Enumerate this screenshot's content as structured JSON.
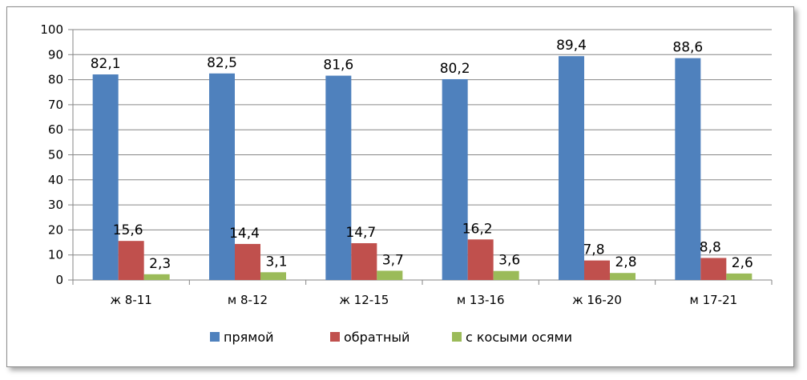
{
  "chart_data": {
    "type": "bar",
    "categories": [
      "ж 8-11",
      "м 8-12",
      "ж 12-15",
      "м 13-16",
      "ж 16-20",
      "м 17-21"
    ],
    "series": [
      {
        "name": "прямой",
        "color": "#4F81BD",
        "values": [
          82.1,
          82.5,
          81.6,
          80.2,
          89.4,
          88.6
        ],
        "labels": [
          "82,1",
          "82,5",
          "81,6",
          "80,2",
          "89,4",
          "88,6"
        ]
      },
      {
        "name": "обратный",
        "color": "#C0504D",
        "values": [
          15.6,
          14.4,
          14.7,
          16.2,
          7.8,
          8.8
        ],
        "labels": [
          "15,6",
          "14,4",
          "14,7",
          "16,2",
          "7,8",
          "8,8"
        ]
      },
      {
        "name": "с косыми осями",
        "color": "#9BBB59",
        "values": [
          2.3,
          3.1,
          3.7,
          3.6,
          2.8,
          2.6
        ],
        "labels": [
          "2,3",
          "3,1",
          "3,7",
          "3,6",
          "2,8",
          "2,6"
        ]
      }
    ],
    "ylim": [
      0,
      100
    ],
    "yticks": [
      "0",
      "10",
      "20",
      "30",
      "40",
      "50",
      "60",
      "70",
      "80",
      "90",
      "100"
    ],
    "grid": true,
    "legend_position": "bottom",
    "title": "",
    "xlabel": "",
    "ylabel": ""
  }
}
